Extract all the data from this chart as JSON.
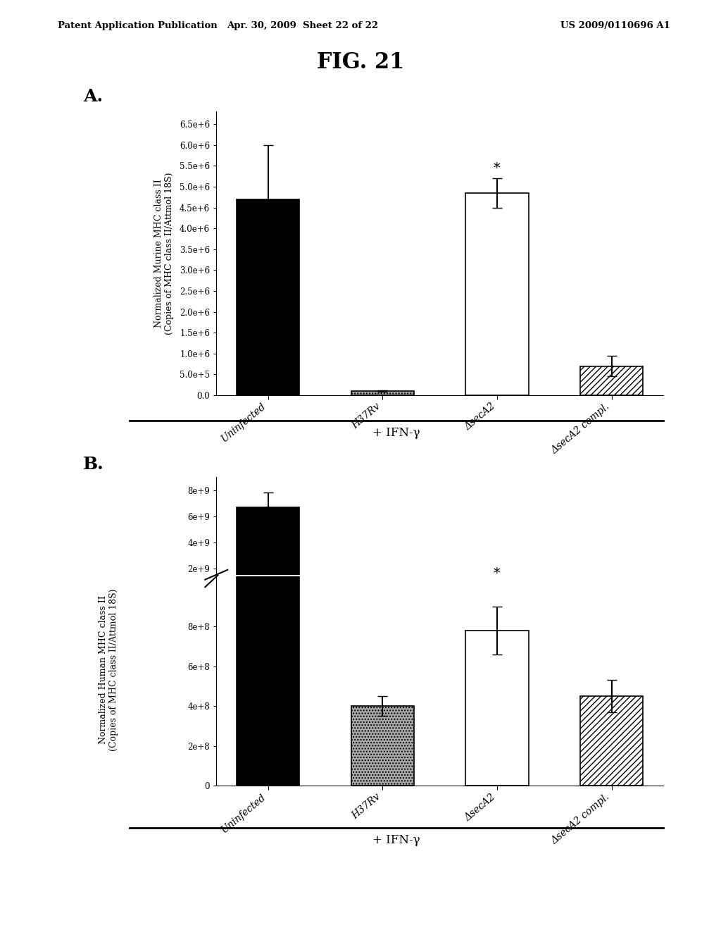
{
  "panel_A": {
    "categories": [
      "Uninfected",
      "H37Rv",
      "ΔsecA2",
      "ΔsecA2 compl."
    ],
    "values": [
      4700000.0,
      100000.0,
      4850000.0,
      700000.0
    ],
    "errors": [
      1300000.0,
      20000.0,
      350000.0,
      250000.0
    ],
    "colors": [
      "black",
      "#aaaaaa",
      "white",
      "white"
    ],
    "hatch": [
      "",
      "....",
      "",
      "////"
    ],
    "edgecolors": [
      "black",
      "black",
      "black",
      "black"
    ],
    "yticks": [
      0.0,
      500000.0,
      1000000.0,
      1500000.0,
      2000000.0,
      2500000.0,
      3000000.0,
      3500000.0,
      4000000.0,
      4500000.0,
      5000000.0,
      5500000.0,
      6000000.0,
      6500000.0
    ],
    "ytick_labels": [
      "0.0",
      "5.0e+5",
      "1.0e+6",
      "1.5e+6",
      "2.0e+6",
      "2.5e+6",
      "3.0e+6",
      "3.5e+6",
      "4.0e+6",
      "4.5e+6",
      "5.0e+6",
      "5.5e+6",
      "6.0e+6",
      "6.5e+6"
    ],
    "ylabel": "Normalized Murine MHC class II\n(Copies of MHC class II/Attmol 18S)",
    "star_bar": 2,
    "ifn_label": "+ IFN-γ"
  },
  "panel_B": {
    "categories": [
      "Uninfected",
      "H37Rv",
      "ΔsecA2",
      "ΔsecA2 compl."
    ],
    "values": [
      6700000000.0,
      400000000.0,
      780000000.0,
      450000000.0
    ],
    "errors": [
      1100000000.0,
      50000000.0,
      120000000.0,
      80000000.0
    ],
    "colors": [
      "black",
      "#aaaaaa",
      "white",
      "white"
    ],
    "hatch": [
      "",
      "....",
      "",
      "////"
    ],
    "edgecolors": [
      "black",
      "black",
      "black",
      "black"
    ],
    "ylabel": "Normalized Human MHC class II\n(Copies of MHC class II/Attmol 18S)",
    "star_bar": 2,
    "ifn_label": "+ IFN-γ",
    "yticks_lower": [
      0,
      200000000.0,
      400000000.0,
      600000000.0,
      800000000.0
    ],
    "ytick_labels_lower": [
      "0",
      "2e+8",
      "4e+8",
      "6e+8",
      "8e+8"
    ],
    "yticks_upper": [
      2000000000.0,
      4000000000.0,
      6000000000.0,
      8000000000.0
    ],
    "ytick_labels_upper": [
      "2e+9",
      "4e+9",
      "6e+9",
      "8e+9"
    ],
    "ylim_lower": [
      0,
      1050000000.0
    ],
    "ylim_upper": [
      1500000000.0,
      9000000000.0
    ]
  },
  "fig_title": "FIG. 21",
  "patent_left": "Patent Application Publication",
  "patent_mid": "Apr. 30, 2009  Sheet 22 of 22",
  "patent_right": "US 2009/0110696 A1",
  "background_color": "#ffffff",
  "bar_width": 0.55
}
